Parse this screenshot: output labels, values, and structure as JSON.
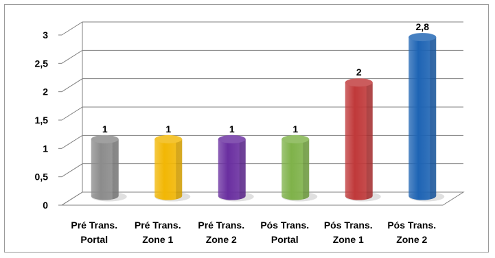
{
  "chart_data": {
    "type": "bar",
    "categories": [
      [
        "Pré Trans.",
        "Portal"
      ],
      [
        "Pré Trans.",
        "Zone 1"
      ],
      [
        "Pré Trans.",
        "Zone 2"
      ],
      [
        "Pós Trans.",
        "Portal"
      ],
      [
        "Pós Trans.",
        "Zone 1"
      ],
      [
        "Pós Trans.",
        "Zone 2"
      ]
    ],
    "values": [
      1,
      1,
      1,
      1,
      2,
      2.8
    ],
    "data_labels": [
      "1",
      "1",
      "1",
      "1",
      "2",
      "2,8"
    ],
    "ylim": [
      0,
      3
    ],
    "yticks": [
      {
        "value": 0,
        "label": "0"
      },
      {
        "value": 0.5,
        "label": "0,5"
      },
      {
        "value": 1,
        "label": "1"
      },
      {
        "value": 1.5,
        "label": "1,5"
      },
      {
        "value": 2,
        "label": "2"
      },
      {
        "value": 2.5,
        "label": "2,5"
      },
      {
        "value": 3,
        "label": "3"
      }
    ],
    "colors": [
      "#8c8c8c",
      "#f2b705",
      "#6a2fa0",
      "#7fb24a",
      "#c0393a",
      "#1e64b4"
    ],
    "grid": true,
    "style": "3d-cylinder",
    "title": "",
    "xlabel": "",
    "ylabel": ""
  }
}
